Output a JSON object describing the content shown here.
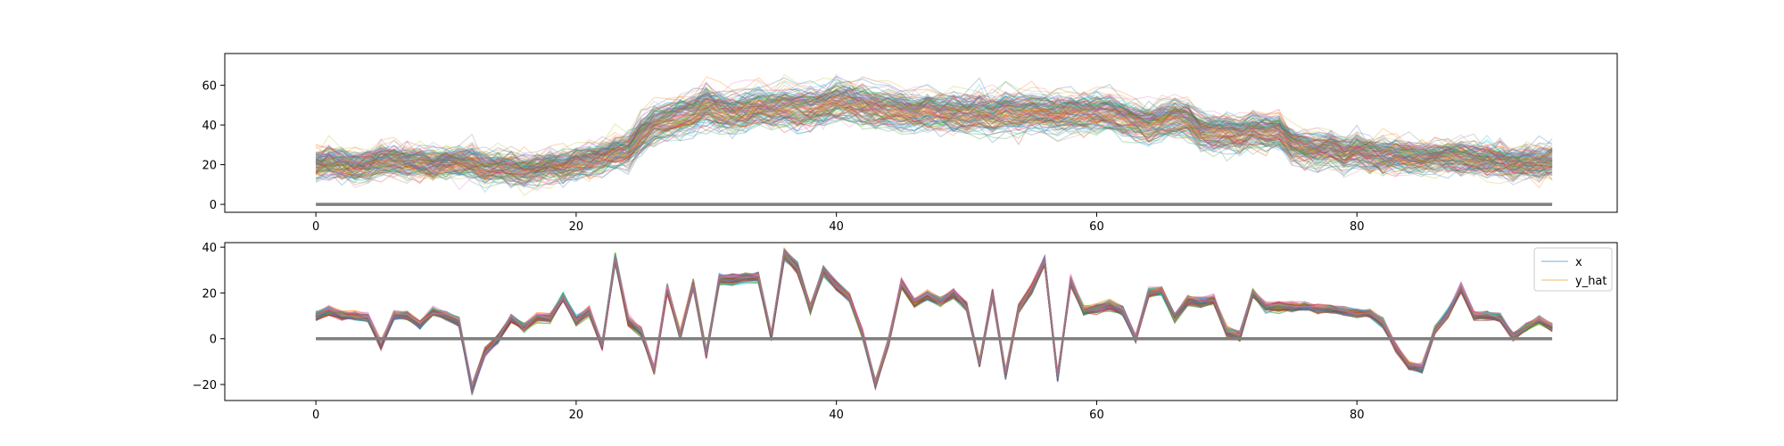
{
  "chart_data": [
    {
      "type": "line",
      "title": "",
      "xlabel": "",
      "ylabel": "",
      "xlim": [
        -7,
        100
      ],
      "ylim": [
        -4,
        76
      ],
      "xticks": [
        0,
        20,
        40,
        60,
        80
      ],
      "yticks": [
        0,
        20,
        40,
        60
      ],
      "legend": null,
      "grid": false,
      "series_description_count": 128,
      "x": [
        0,
        1,
        2,
        3,
        4,
        5,
        6,
        7,
        8,
        9,
        10,
        11,
        12,
        13,
        14,
        15,
        16,
        17,
        18,
        19,
        20,
        21,
        22,
        23,
        24,
        25,
        26,
        27,
        28,
        29,
        30,
        31,
        32,
        33,
        34,
        35,
        36,
        37,
        38,
        39,
        40,
        41,
        42,
        43,
        44,
        45,
        46,
        47,
        48,
        49,
        50,
        51,
        52,
        53,
        54,
        55,
        56,
        57,
        58,
        59,
        60,
        61,
        62,
        63,
        64,
        65,
        66,
        67,
        68,
        69,
        70,
        71,
        72,
        73,
        74,
        75,
        76,
        77,
        78,
        79,
        80,
        81,
        82,
        83,
        84,
        85,
        86,
        87,
        88,
        89,
        90,
        91,
        92,
        93,
        94,
        95
      ],
      "mean_profile": [
        20,
        21,
        20,
        19,
        20,
        22,
        22,
        21,
        21,
        20,
        21,
        21,
        21,
        18,
        19,
        18,
        17,
        18,
        19,
        19,
        21,
        22,
        24,
        26,
        27,
        35,
        40,
        42,
        44,
        46,
        50,
        47,
        46,
        47,
        49,
        48,
        49,
        48,
        48,
        49,
        52,
        51,
        50,
        49,
        48,
        47,
        46,
        47,
        46,
        46,
        45,
        46,
        45,
        47,
        46,
        47,
        46,
        45,
        46,
        46,
        46,
        46,
        44,
        42,
        40,
        42,
        44,
        43,
        37,
        36,
        36,
        35,
        37,
        36,
        37,
        30,
        28,
        27,
        28,
        25,
        27,
        26,
        24,
        25,
        24,
        23,
        24,
        24,
        24,
        23,
        22,
        22,
        20,
        21,
        21,
        22
      ],
      "baseline_value": 0
    },
    {
      "type": "line",
      "title": "",
      "xlabel": "",
      "ylabel": "",
      "xlim": [
        -7,
        100
      ],
      "ylim": [
        -27,
        42
      ],
      "xticks": [
        0,
        20,
        40,
        60,
        80
      ],
      "yticks": [
        -20,
        0,
        20,
        40
      ],
      "legend": {
        "placement": "upper right",
        "entries": [
          "x",
          "y_hat"
        ]
      },
      "grid": false,
      "series_description_count": 128,
      "x": [
        0,
        1,
        2,
        3,
        4,
        5,
        6,
        7,
        8,
        9,
        10,
        11,
        12,
        13,
        14,
        15,
        16,
        17,
        18,
        19,
        20,
        21,
        22,
        23,
        24,
        25,
        26,
        27,
        28,
        29,
        30,
        31,
        32,
        33,
        34,
        35,
        36,
        37,
        38,
        39,
        40,
        41,
        42,
        43,
        44,
        45,
        46,
        47,
        48,
        49,
        50,
        51,
        52,
        53,
        54,
        55,
        56,
        57,
        58,
        59,
        60,
        61,
        62,
        63,
        64,
        65,
        66,
        67,
        68,
        69,
        70,
        71,
        72,
        73,
        74,
        75,
        76,
        77,
        78,
        79,
        80,
        81,
        82,
        83,
        84,
        85,
        86,
        87,
        88,
        89,
        90,
        91,
        92,
        93,
        94,
        95
      ],
      "mean_profile": [
        10,
        12,
        10,
        10,
        9,
        -3,
        10,
        10,
        6,
        12,
        10,
        7,
        -22,
        -6,
        0,
        9,
        5,
        9,
        9,
        18,
        8,
        12,
        -3,
        35,
        8,
        3,
        -14,
        22,
        1,
        24,
        -7,
        26,
        26,
        27,
        27,
        1,
        37,
        31,
        13,
        30,
        23,
        18,
        2,
        -20,
        -2,
        24,
        16,
        19,
        16,
        20,
        14,
        -11,
        20,
        -16,
        13,
        22,
        34,
        -17,
        25,
        12,
        13,
        15,
        12,
        0,
        20,
        21,
        9,
        17,
        16,
        17,
        3,
        1,
        20,
        14,
        14,
        14,
        14,
        13,
        13,
        12,
        11,
        11,
        7,
        -4,
        -12,
        -13,
        4,
        11,
        22,
        10,
        10,
        9,
        1,
        5,
        8,
        5
      ],
      "baseline_value": 0
    }
  ],
  "legend": {
    "entries": [
      {
        "label": "x",
        "color": "#a6c8e0"
      },
      {
        "label": "y_hat",
        "color": "#f7cfa0"
      }
    ]
  },
  "colors": {
    "palette": [
      "#1f77b4",
      "#ff7f0e",
      "#2ca02c",
      "#d62728",
      "#9467bd",
      "#8c564b",
      "#e377c2",
      "#7f7f7f",
      "#bcbd22",
      "#17becf"
    ],
    "baseline": "#7f7f7f"
  }
}
